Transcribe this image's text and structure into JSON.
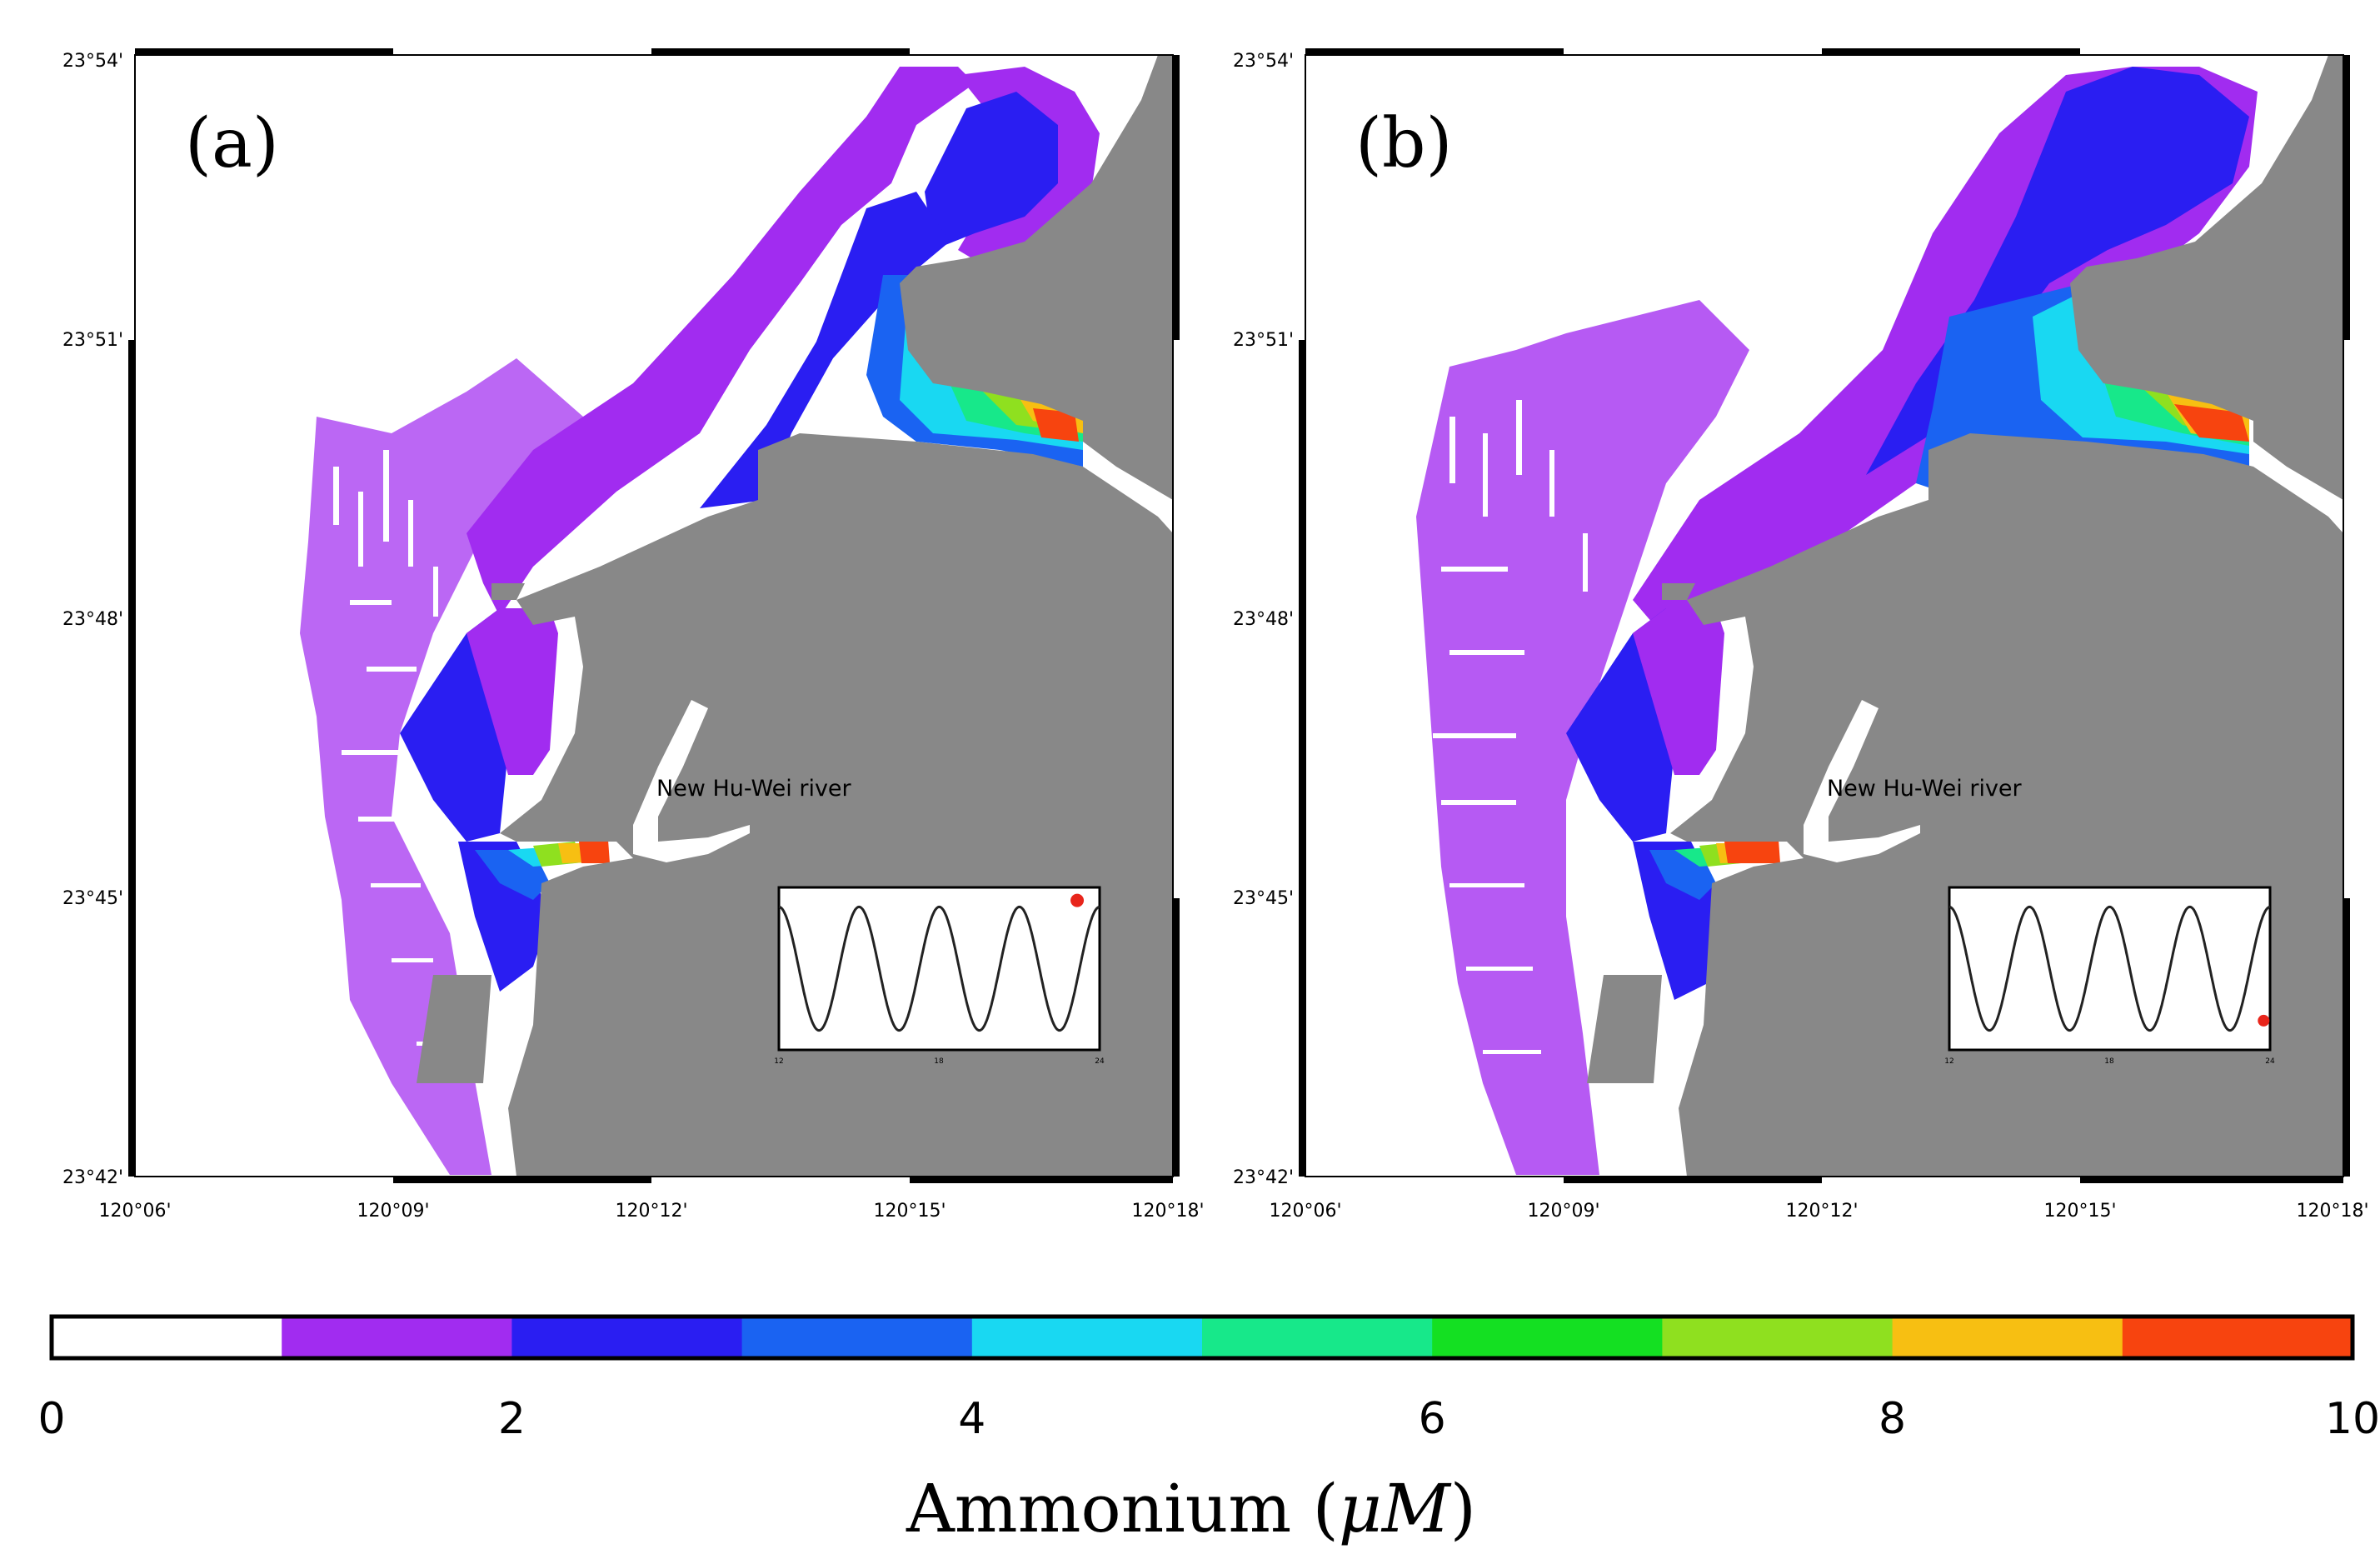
{
  "panels": [
    {
      "label": "(a)",
      "river_label": "New Hu-Wei river",
      "lat_ticks": [
        "23°54'",
        "23°51'",
        "23°48'",
        "23°45'",
        "23°42'"
      ],
      "lon_ticks": [
        "120°06'",
        "120°09'",
        "120°12'",
        "120°15'",
        "120°18'"
      ],
      "inset": {
        "tick_labels": [
          "12",
          "18",
          "24"
        ],
        "marker_phase": 0.93,
        "marker_level": 0.92,
        "marker_color": "#e8251b"
      }
    },
    {
      "label": "(b)",
      "river_label": "New Hu-Wei river",
      "lat_ticks": [
        "23°54'",
        "23°51'",
        "23°48'",
        "23°45'",
        "23°42'"
      ],
      "lon_ticks": [
        "120°06'",
        "120°09'",
        "120°12'",
        "120°15'",
        "120°18'"
      ],
      "inset": {
        "tick_labels": [
          "12",
          "18",
          "24"
        ],
        "marker_phase": 0.98,
        "marker_level": 0.18,
        "marker_color": "#e8251b"
      }
    }
  ],
  "colorbar": {
    "title": "Ammonium (",
    "title_unit": "μM",
    "title_close": ")",
    "tick_labels": [
      "0",
      "2",
      "4",
      "6",
      "8",
      "10"
    ],
    "min": 0,
    "max": 10,
    "colors": [
      "#ffffff",
      "#a12cf0",
      "#2a1ef2",
      "#1a63f2",
      "#19d8f2",
      "#17e88a",
      "#14e022",
      "#8fe01f",
      "#f7bf12",
      "#f7440f"
    ]
  },
  "palette": {
    "land": "#888888",
    "water": "#ffffff",
    "frame": "#000000"
  }
}
